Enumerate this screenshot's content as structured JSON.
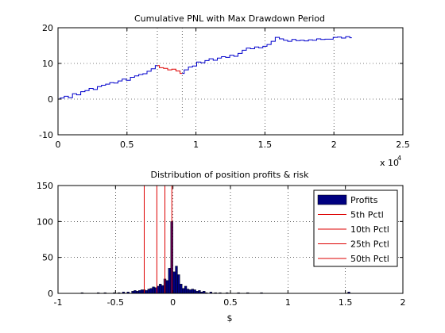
{
  "chart_data": [
    {
      "type": "line",
      "title": "Cumulative PNL with Max Drawdown Period",
      "xlabel": "",
      "ylabel": "",
      "xlim": [
        0,
        25000
      ],
      "ylim": [
        -10,
        20
      ],
      "x_tick_labels": [
        "0",
        "0.5",
        "1",
        "1.5",
        "2",
        "2.5"
      ],
      "x_tick_values": [
        0,
        5000,
        10000,
        15000,
        20000,
        25000
      ],
      "y_tick_labels": [
        "-10",
        "0",
        "10",
        "20"
      ],
      "y_tick_values": [
        -10,
        0,
        10,
        20
      ],
      "x_exponent_label": "x 10",
      "x_exponent_power": "4",
      "grid": true,
      "series": [
        {
          "color": "#0000cc",
          "x": [
            0,
            300,
            600,
            900,
            1200,
            1500,
            1800,
            2100,
            2400,
            2700,
            3000,
            3300,
            3600,
            3900,
            4200,
            4500,
            4800,
            5100,
            5400,
            5700,
            6000,
            6300,
            6600,
            6900,
            7200
          ],
          "y": [
            0,
            0.3,
            0.8,
            0.4,
            1.5,
            1.2,
            2.1,
            2.4,
            3.0,
            2.7,
            3.5,
            3.9,
            4.2,
            4.6,
            4.5,
            5.1,
            5.6,
            5.3,
            6.1,
            6.5,
            6.9,
            7.1,
            7.8,
            8.5,
            9.4
          ]
        },
        {
          "color": "#dd0000",
          "x": [
            7200,
            7500,
            7800,
            8100,
            8400,
            8700,
            9000
          ],
          "y": [
            9.4,
            8.8,
            8.6,
            8.2,
            8.4,
            7.9,
            7.2
          ]
        },
        {
          "color": "#0000cc",
          "x": [
            9000,
            9300,
            9600,
            9900,
            10200,
            10500,
            10800,
            11100,
            11400,
            11700,
            12000,
            12300,
            12600,
            12900,
            13200,
            13500,
            13800,
            14100,
            14400,
            14700,
            15000,
            15300,
            15600,
            15900,
            16200,
            16500,
            16800,
            17100,
            17400,
            17700,
            18000,
            18300,
            18600,
            18900,
            19200,
            19500,
            19800,
            20100,
            20400,
            20700,
            21000,
            21300
          ],
          "y": [
            7.2,
            8.2,
            9.0,
            9.3,
            10.4,
            10.2,
            10.8,
            11.3,
            10.9,
            11.5,
            11.9,
            11.7,
            12.3,
            12.0,
            12.8,
            13.7,
            14.3,
            14.1,
            14.6,
            14.4,
            14.8,
            15.3,
            16.2,
            17.3,
            16.9,
            16.5,
            16.2,
            16.7,
            16.4,
            16.5,
            16.3,
            16.6,
            16.5,
            16.9,
            16.7,
            16.8,
            16.8,
            17.3,
            17.4,
            17.1,
            17.5,
            17.2
          ]
        }
      ],
      "gridlines_x": [
        7200,
        9000
      ]
    },
    {
      "type": "bar",
      "title": "Distribution of position profits & risk",
      "xlabel": "$",
      "ylabel": "",
      "xlim": [
        -1,
        2
      ],
      "ylim": [
        0,
        150
      ],
      "x_tick_labels": [
        "-1",
        "-0.5",
        "0",
        "0.5",
        "1",
        "1.5",
        "2"
      ],
      "x_tick_values": [
        -1,
        -0.5,
        0,
        0.5,
        1,
        1.5,
        2
      ],
      "y_tick_labels": [
        "0",
        "50",
        "100",
        "150"
      ],
      "y_tick_values": [
        0,
        50,
        100,
        150
      ],
      "grid": true,
      "legend_position": "top-right",
      "bin_width": 0.02,
      "bars": [
        {
          "x": -0.79,
          "y": 1
        },
        {
          "x": -0.65,
          "y": 1
        },
        {
          "x": -0.59,
          "y": 1
        },
        {
          "x": -0.51,
          "y": 1
        },
        {
          "x": -0.47,
          "y": 1
        },
        {
          "x": -0.43,
          "y": 2
        },
        {
          "x": -0.39,
          "y": 2
        },
        {
          "x": -0.35,
          "y": 3
        },
        {
          "x": -0.33,
          "y": 4
        },
        {
          "x": -0.31,
          "y": 3
        },
        {
          "x": -0.29,
          "y": 4
        },
        {
          "x": -0.27,
          "y": 5
        },
        {
          "x": -0.25,
          "y": 5
        },
        {
          "x": -0.23,
          "y": 4
        },
        {
          "x": -0.21,
          "y": 6
        },
        {
          "x": -0.19,
          "y": 7
        },
        {
          "x": -0.17,
          "y": 9
        },
        {
          "x": -0.15,
          "y": 8
        },
        {
          "x": -0.13,
          "y": 10
        },
        {
          "x": -0.11,
          "y": 13
        },
        {
          "x": -0.09,
          "y": 11
        },
        {
          "x": -0.07,
          "y": 20
        },
        {
          "x": -0.05,
          "y": 18
        },
        {
          "x": -0.03,
          "y": 35
        },
        {
          "x": -0.01,
          "y": 100
        },
        {
          "x": 0.01,
          "y": 30
        },
        {
          "x": 0.03,
          "y": 38
        },
        {
          "x": 0.05,
          "y": 26
        },
        {
          "x": 0.07,
          "y": 13
        },
        {
          "x": 0.09,
          "y": 7
        },
        {
          "x": 0.11,
          "y": 10
        },
        {
          "x": 0.13,
          "y": 6
        },
        {
          "x": 0.15,
          "y": 5
        },
        {
          "x": 0.17,
          "y": 6
        },
        {
          "x": 0.19,
          "y": 5
        },
        {
          "x": 0.21,
          "y": 3
        },
        {
          "x": 0.23,
          "y": 4
        },
        {
          "x": 0.25,
          "y": 2
        },
        {
          "x": 0.27,
          "y": 3
        },
        {
          "x": 0.29,
          "y": 1
        },
        {
          "x": 0.33,
          "y": 2
        },
        {
          "x": 0.37,
          "y": 1
        },
        {
          "x": 0.41,
          "y": 1
        },
        {
          "x": 0.47,
          "y": 1
        },
        {
          "x": 0.57,
          "y": 1
        },
        {
          "x": 0.65,
          "y": 1
        },
        {
          "x": 0.77,
          "y": 1
        },
        {
          "x": 1.53,
          "y": 2
        }
      ],
      "percentile_lines": [
        {
          "x": -0.25,
          "y_top": 150
        },
        {
          "x": -0.14,
          "y_top": 150
        },
        {
          "x": -0.07,
          "y_top": 150
        },
        {
          "x": -0.01,
          "y_top": 150
        }
      ],
      "legend": [
        {
          "label": "Profits",
          "kind": "patch",
          "color": "#000080"
        },
        {
          "label": "5th Pctl",
          "kind": "line",
          "color": "#dd0000"
        },
        {
          "label": "10th Pctl",
          "kind": "line",
          "color": "#dd0000"
        },
        {
          "label": "25th Pctl",
          "kind": "line",
          "color": "#dd0000"
        },
        {
          "label": "50th Pctl",
          "kind": "line",
          "color": "#dd0000"
        }
      ],
      "bar_color": "#000080"
    }
  ]
}
